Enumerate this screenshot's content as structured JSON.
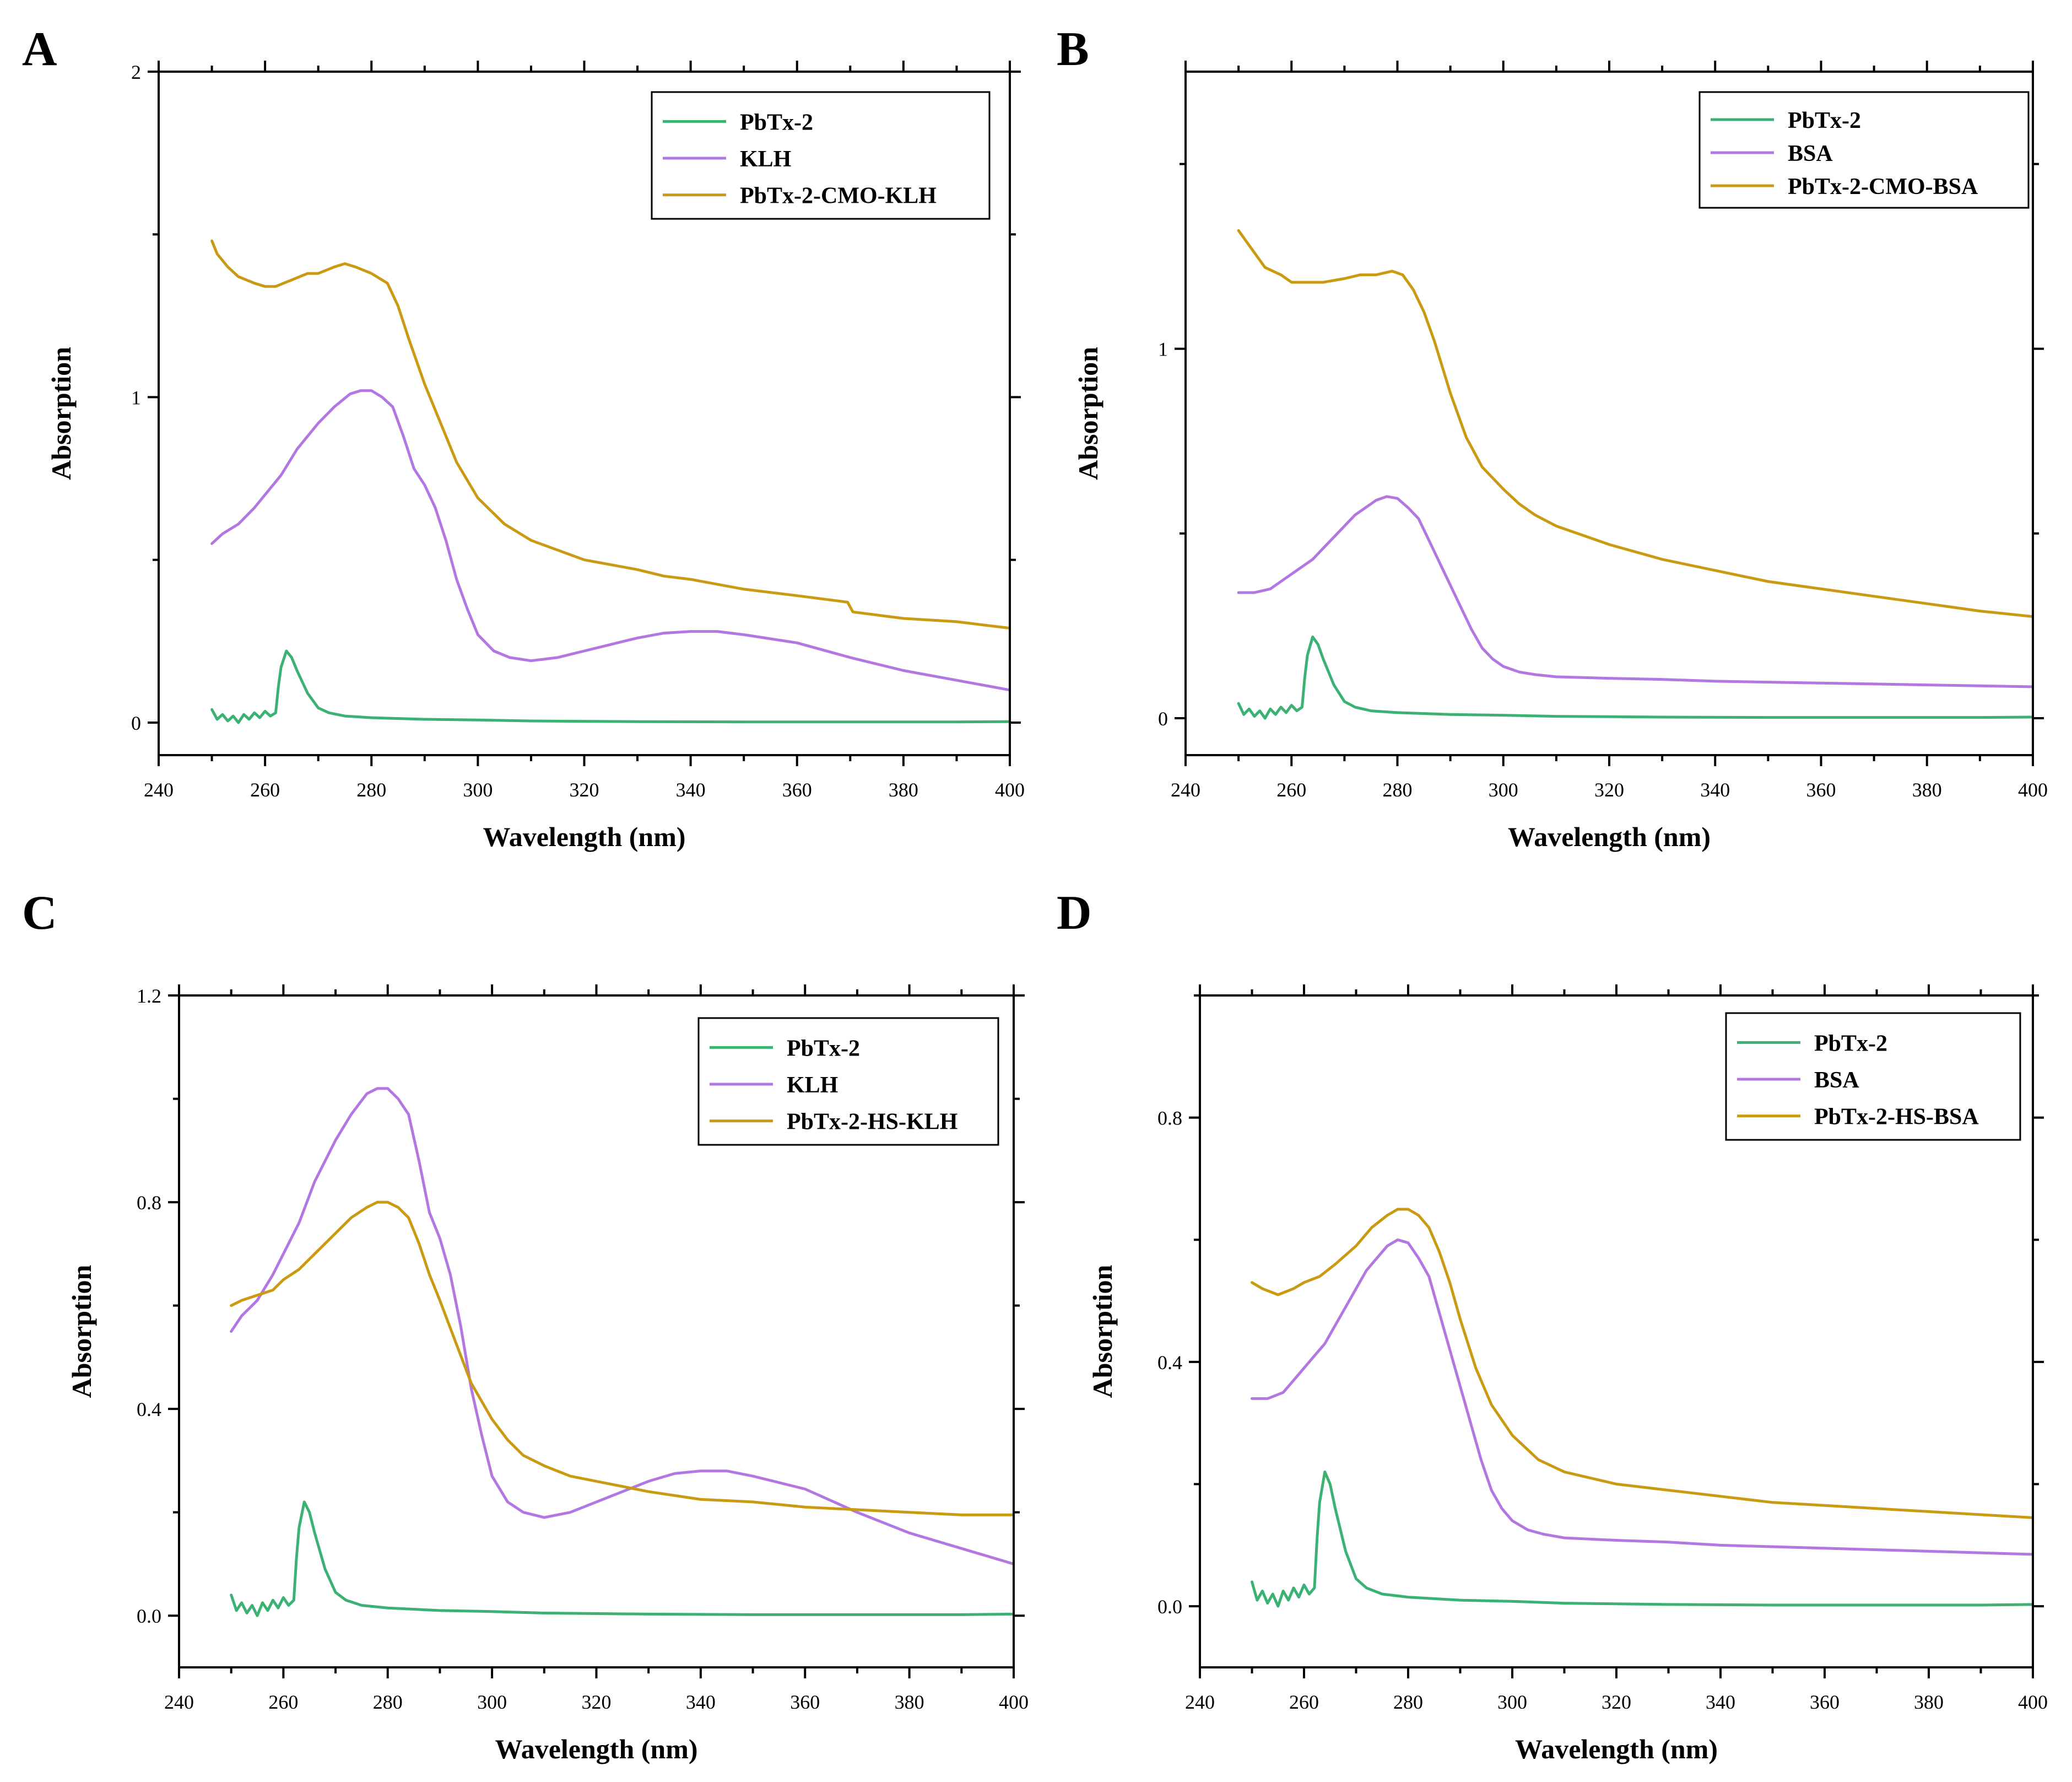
{
  "figure": {
    "series_colors": {
      "PbTx-2": "#3bb273",
      "protein": "#b277e0",
      "conjugate": "#c99a12"
    }
  },
  "chart_data": [
    {
      "panel": "A",
      "type": "line",
      "xlabel": "Wavelength (nm)",
      "ylabel": "Absorption",
      "xlim": [
        240,
        400
      ],
      "ylim": [
        -0.1,
        2.0
      ],
      "xticks": [
        "240",
        "260",
        "280",
        "300",
        "320",
        "340",
        "360",
        "380",
        "400"
      ],
      "yticks": [
        {
          "value": 0,
          "label": "0"
        },
        {
          "value": 1,
          "label": "1"
        },
        {
          "value": 2,
          "label": "2"
        }
      ],
      "minor_ytick_step": 0.5,
      "legend": [
        "PbTx-2",
        "KLH",
        "PbTx-2-CMO-KLH"
      ],
      "series": [
        {
          "name": "PbTx-2",
          "color": "#3bb273",
          "x": [
            250,
            251,
            252,
            253,
            254,
            255,
            256,
            257,
            258,
            259,
            260,
            261,
            262,
            262.5,
            263,
            264,
            265,
            266,
            268,
            270,
            272,
            275,
            280,
            290,
            300,
            310,
            330,
            350,
            370,
            390,
            400
          ],
          "y": [
            0.04,
            0.01,
            0.025,
            0.005,
            0.02,
            0.0,
            0.025,
            0.01,
            0.03,
            0.015,
            0.035,
            0.02,
            0.03,
            0.11,
            0.17,
            0.22,
            0.2,
            0.16,
            0.09,
            0.045,
            0.03,
            0.02,
            0.015,
            0.01,
            0.008,
            0.005,
            0.003,
            0.002,
            0.002,
            0.002,
            0.003
          ]
        },
        {
          "name": "KLH",
          "color": "#b277e0",
          "x": [
            250,
            252,
            255,
            258,
            260,
            263,
            266,
            270,
            273,
            276,
            278,
            280,
            282,
            284,
            286,
            288,
            290,
            292,
            294,
            296,
            298,
            300,
            303,
            306,
            310,
            315,
            320,
            325,
            330,
            335,
            340,
            345,
            350,
            360,
            370,
            380,
            390,
            400
          ],
          "y": [
            0.55,
            0.58,
            0.61,
            0.66,
            0.7,
            0.76,
            0.84,
            0.92,
            0.97,
            1.01,
            1.02,
            1.02,
            1.0,
            0.97,
            0.88,
            0.78,
            0.73,
            0.66,
            0.56,
            0.44,
            0.35,
            0.27,
            0.22,
            0.2,
            0.19,
            0.2,
            0.22,
            0.24,
            0.26,
            0.275,
            0.28,
            0.28,
            0.27,
            0.245,
            0.2,
            0.16,
            0.13,
            0.1
          ]
        },
        {
          "name": "PbTx-2-CMO-KLH",
          "color": "#c99a12",
          "x": [
            250,
            251,
            253,
            255,
            258,
            260,
            262,
            265,
            268,
            270,
            273,
            275,
            277,
            280,
            283,
            285,
            287,
            290,
            293,
            296,
            300,
            305,
            310,
            320,
            330,
            335,
            340,
            350,
            360,
            369.5,
            370.5,
            380,
            390,
            400
          ],
          "y": [
            1.48,
            1.44,
            1.4,
            1.37,
            1.35,
            1.34,
            1.34,
            1.36,
            1.38,
            1.38,
            1.4,
            1.41,
            1.4,
            1.38,
            1.35,
            1.28,
            1.18,
            1.04,
            0.92,
            0.8,
            0.69,
            0.61,
            0.56,
            0.5,
            0.47,
            0.45,
            0.44,
            0.41,
            0.39,
            0.37,
            0.34,
            0.32,
            0.31,
            0.29
          ]
        }
      ]
    },
    {
      "panel": "B",
      "type": "line",
      "xlabel": "Wavelength (nm)",
      "ylabel": "Absorption",
      "xlim": [
        240,
        400
      ],
      "ylim": [
        -0.1,
        1.75
      ],
      "xticks": [
        "240",
        "260",
        "280",
        "300",
        "320",
        "340",
        "360",
        "380",
        "400"
      ],
      "yticks": [
        {
          "value": 0,
          "label": "0"
        },
        {
          "value": 1,
          "label": "1"
        }
      ],
      "minor_ytick_step": 0.5,
      "legend": [
        "PbTx-2",
        "BSA",
        "PbTx-2-CMO-BSA"
      ],
      "series": [
        {
          "name": "PbTx-2",
          "color": "#3bb273",
          "x": [
            250,
            251,
            252,
            253,
            254,
            255,
            256,
            257,
            258,
            259,
            260,
            261,
            262,
            262.5,
            263,
            264,
            265,
            266,
            268,
            270,
            272,
            275,
            280,
            290,
            300,
            310,
            330,
            350,
            370,
            390,
            400
          ],
          "y": [
            0.04,
            0.01,
            0.025,
            0.005,
            0.02,
            0.0,
            0.025,
            0.01,
            0.03,
            0.015,
            0.035,
            0.02,
            0.03,
            0.11,
            0.17,
            0.22,
            0.2,
            0.16,
            0.09,
            0.045,
            0.03,
            0.02,
            0.015,
            0.01,
            0.008,
            0.005,
            0.003,
            0.002,
            0.002,
            0.002,
            0.003
          ]
        },
        {
          "name": "BSA",
          "color": "#b277e0",
          "x": [
            250,
            253,
            256,
            258,
            260,
            262,
            264,
            266,
            268,
            270,
            272,
            274,
            276,
            278,
            280,
            282,
            284,
            286,
            288,
            290,
            292,
            294,
            296,
            298,
            300,
            303,
            306,
            310,
            320,
            330,
            340,
            360,
            380,
            400
          ],
          "y": [
            0.34,
            0.34,
            0.35,
            0.37,
            0.39,
            0.41,
            0.43,
            0.46,
            0.49,
            0.52,
            0.55,
            0.57,
            0.59,
            0.6,
            0.595,
            0.57,
            0.54,
            0.48,
            0.42,
            0.36,
            0.3,
            0.24,
            0.19,
            0.16,
            0.14,
            0.125,
            0.118,
            0.112,
            0.108,
            0.105,
            0.1,
            0.095,
            0.09,
            0.085
          ]
        },
        {
          "name": "PbTx-2-CMO-BSA",
          "color": "#c99a12",
          "x": [
            250,
            252,
            255,
            258,
            260,
            263,
            266,
            270,
            273,
            276,
            279,
            281,
            283,
            285,
            287,
            290,
            293,
            296,
            300,
            303,
            306,
            310,
            320,
            330,
            340,
            350,
            360,
            370,
            380,
            390,
            400
          ],
          "y": [
            1.32,
            1.28,
            1.22,
            1.2,
            1.18,
            1.18,
            1.18,
            1.19,
            1.2,
            1.2,
            1.21,
            1.2,
            1.16,
            1.1,
            1.02,
            0.88,
            0.76,
            0.68,
            0.62,
            0.58,
            0.55,
            0.52,
            0.47,
            0.43,
            0.4,
            0.37,
            0.35,
            0.33,
            0.31,
            0.29,
            0.275
          ]
        }
      ]
    },
    {
      "panel": "C",
      "type": "line",
      "xlabel": "Wavelength (nm)",
      "ylabel": "Absorption",
      "xlim": [
        240,
        400
      ],
      "ylim": [
        -0.1,
        1.2
      ],
      "xticks": [
        "240",
        "260",
        "280",
        "300",
        "320",
        "340",
        "360",
        "380",
        "400"
      ],
      "yticks": [
        {
          "value": 0,
          "label": "0.0"
        },
        {
          "value": 0.4,
          "label": "0.4"
        },
        {
          "value": 0.8,
          "label": "0.8"
        },
        {
          "value": 1.2,
          "label": "1.2"
        }
      ],
      "minor_ytick_step": 0.2,
      "legend": [
        "PbTx-2",
        "KLH",
        "PbTx-2-HS-KLH"
      ],
      "series": [
        {
          "name": "PbTx-2",
          "color": "#3bb273",
          "x": [
            250,
            251,
            252,
            253,
            254,
            255,
            256,
            257,
            258,
            259,
            260,
            261,
            262,
            262.5,
            263,
            264,
            265,
            266,
            268,
            270,
            272,
            275,
            280,
            290,
            300,
            310,
            330,
            350,
            370,
            390,
            400
          ],
          "y": [
            0.04,
            0.01,
            0.025,
            0.005,
            0.02,
            0.0,
            0.025,
            0.01,
            0.03,
            0.015,
            0.035,
            0.02,
            0.03,
            0.11,
            0.17,
            0.22,
            0.2,
            0.16,
            0.09,
            0.045,
            0.03,
            0.02,
            0.015,
            0.01,
            0.008,
            0.005,
            0.003,
            0.002,
            0.002,
            0.002,
            0.003
          ]
        },
        {
          "name": "KLH",
          "color": "#b277e0",
          "x": [
            250,
            252,
            255,
            258,
            260,
            263,
            266,
            270,
            273,
            276,
            278,
            280,
            282,
            284,
            286,
            288,
            290,
            292,
            294,
            296,
            298,
            300,
            303,
            306,
            310,
            315,
            320,
            325,
            330,
            335,
            340,
            345,
            350,
            360,
            370,
            380,
            390,
            400
          ],
          "y": [
            0.55,
            0.58,
            0.61,
            0.66,
            0.7,
            0.76,
            0.84,
            0.92,
            0.97,
            1.01,
            1.02,
            1.02,
            1.0,
            0.97,
            0.88,
            0.78,
            0.73,
            0.66,
            0.56,
            0.44,
            0.35,
            0.27,
            0.22,
            0.2,
            0.19,
            0.2,
            0.22,
            0.24,
            0.26,
            0.275,
            0.28,
            0.28,
            0.27,
            0.245,
            0.2,
            0.16,
            0.13,
            0.1
          ]
        },
        {
          "name": "PbTx-2-HS-KLH",
          "color": "#c99a12",
          "x": [
            250,
            252,
            255,
            258,
            260,
            263,
            266,
            270,
            273,
            276,
            278,
            280,
            282,
            284,
            286,
            288,
            290,
            293,
            296,
            300,
            303,
            306,
            310,
            315,
            320,
            330,
            340,
            350,
            360,
            370,
            380,
            390,
            400
          ],
          "y": [
            0.6,
            0.61,
            0.62,
            0.63,
            0.65,
            0.67,
            0.7,
            0.74,
            0.77,
            0.79,
            0.8,
            0.8,
            0.79,
            0.77,
            0.72,
            0.66,
            0.61,
            0.53,
            0.45,
            0.38,
            0.34,
            0.31,
            0.29,
            0.27,
            0.26,
            0.24,
            0.225,
            0.22,
            0.21,
            0.205,
            0.2,
            0.195,
            0.195
          ]
        }
      ]
    },
    {
      "panel": "D",
      "type": "line",
      "xlabel": "Wavelength (nm)",
      "ylabel": "Absorption",
      "xlim": [
        240,
        400
      ],
      "ylim": [
        -0.1,
        1.0
      ],
      "xticks": [
        "240",
        "260",
        "280",
        "300",
        "320",
        "340",
        "360",
        "380",
        "400"
      ],
      "yticks": [
        {
          "value": 0,
          "label": "0.0"
        },
        {
          "value": 0.4,
          "label": "0.4"
        },
        {
          "value": 0.8,
          "label": "0.8"
        }
      ],
      "minor_ytick_step": 0.2,
      "legend": [
        "PbTx-2",
        "BSA",
        "PbTx-2-HS-BSA"
      ],
      "series": [
        {
          "name": "PbTx-2",
          "color": "#3bb273",
          "x": [
            250,
            251,
            252,
            253,
            254,
            255,
            256,
            257,
            258,
            259,
            260,
            261,
            262,
            262.5,
            263,
            264,
            265,
            266,
            268,
            270,
            272,
            275,
            280,
            290,
            300,
            310,
            330,
            350,
            370,
            390,
            400
          ],
          "y": [
            0.04,
            0.01,
            0.025,
            0.005,
            0.02,
            0.0,
            0.025,
            0.01,
            0.03,
            0.015,
            0.035,
            0.02,
            0.03,
            0.11,
            0.17,
            0.22,
            0.2,
            0.16,
            0.09,
            0.045,
            0.03,
            0.02,
            0.015,
            0.01,
            0.008,
            0.005,
            0.003,
            0.002,
            0.002,
            0.002,
            0.003
          ]
        },
        {
          "name": "BSA",
          "color": "#b277e0",
          "x": [
            250,
            253,
            256,
            258,
            260,
            262,
            264,
            266,
            268,
            270,
            272,
            274,
            276,
            278,
            280,
            282,
            284,
            286,
            288,
            290,
            292,
            294,
            296,
            298,
            300,
            303,
            306,
            310,
            320,
            330,
            340,
            360,
            380,
            400
          ],
          "y": [
            0.34,
            0.34,
            0.35,
            0.37,
            0.39,
            0.41,
            0.43,
            0.46,
            0.49,
            0.52,
            0.55,
            0.57,
            0.59,
            0.6,
            0.595,
            0.57,
            0.54,
            0.48,
            0.42,
            0.36,
            0.3,
            0.24,
            0.19,
            0.16,
            0.14,
            0.125,
            0.118,
            0.112,
            0.108,
            0.105,
            0.1,
            0.095,
            0.09,
            0.085
          ]
        },
        {
          "name": "PbTx-2-HS-BSA",
          "color": "#c99a12",
          "x": [
            250,
            252,
            255,
            258,
            260,
            263,
            266,
            270,
            273,
            276,
            278,
            280,
            282,
            284,
            286,
            288,
            290,
            293,
            296,
            300,
            305,
            310,
            320,
            330,
            340,
            350,
            360,
            370,
            380,
            390,
            400
          ],
          "y": [
            0.53,
            0.52,
            0.51,
            0.52,
            0.53,
            0.54,
            0.56,
            0.59,
            0.62,
            0.64,
            0.65,
            0.65,
            0.64,
            0.62,
            0.58,
            0.53,
            0.47,
            0.39,
            0.33,
            0.28,
            0.24,
            0.22,
            0.2,
            0.19,
            0.18,
            0.17,
            0.165,
            0.16,
            0.155,
            0.15,
            0.145
          ]
        }
      ]
    }
  ]
}
